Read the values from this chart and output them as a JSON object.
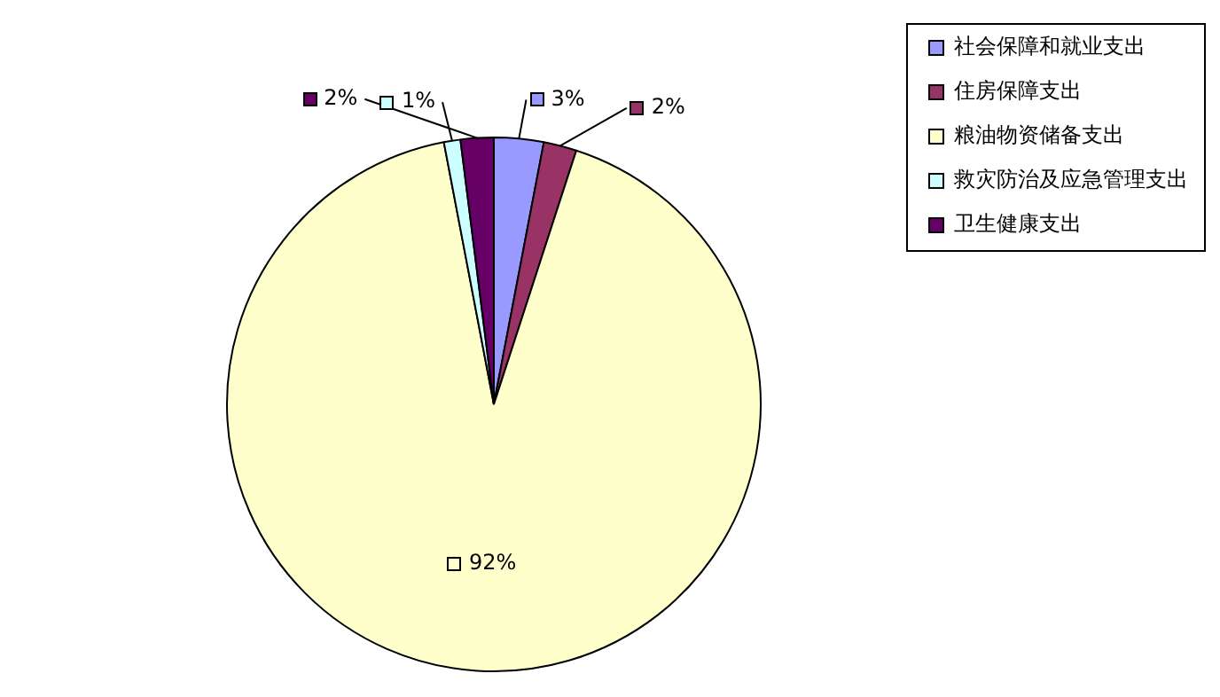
{
  "chart_data": {
    "type": "pie",
    "categories": [
      "社会保障和就业支出",
      "住房保障支出",
      "粮油物资储备支出",
      "救灾防治及应急管理支出",
      "卫生健康支出"
    ],
    "values": [
      3,
      2,
      92,
      1,
      2
    ],
    "colors": [
      "#9999ff",
      "#993366",
      "#ffffcc",
      "#ccffff",
      "#660066"
    ],
    "value_labels": [
      "3%",
      "2%",
      "92%",
      "1%",
      "2%"
    ],
    "legend": "top right"
  }
}
